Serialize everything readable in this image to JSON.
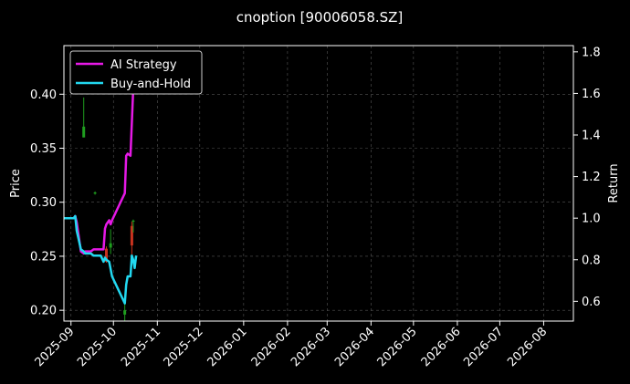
{
  "chart_data": {
    "type": "line",
    "title": "cnoption [90006058.SZ]",
    "ylabel_left": "Price",
    "ylabel_right": "Return",
    "x_ticks": [
      "2025-09",
      "2025-10",
      "2025-11",
      "2025-12",
      "2026-01",
      "2026-02",
      "2026-03",
      "2026-04",
      "2026-05",
      "2026-06",
      "2026-07",
      "2026-08"
    ],
    "xlim": [
      "2025-08-27",
      "2026-08-22"
    ],
    "ylim_left": [
      0.19,
      0.445
    ],
    "ylim_right": [
      0.505,
      1.83
    ],
    "y_ticks_left": [
      "0.20",
      "0.25",
      "0.30",
      "0.35",
      "0.40"
    ],
    "y_ticks_right": [
      "0.6",
      "0.8",
      "1.0",
      "1.2",
      "1.4",
      "1.6",
      "1.8"
    ],
    "legend_position": "top-left",
    "grid": true,
    "colors": {
      "ai_strategy": "#e619e6",
      "buy_and_hold": "#22d8f0",
      "candle_up": "#1f9e1f",
      "candle_down": "#c8321e",
      "grid": "#555555",
      "axis": "#ffffff"
    },
    "series": [
      {
        "name": "AI Strategy",
        "axis": "right",
        "points": [
          [
            "2025-08-27",
            1.0
          ],
          [
            "2025-09-03",
            1.0
          ],
          [
            "2025-09-04",
            1.01
          ],
          [
            "2025-09-05",
            0.98
          ],
          [
            "2025-09-08",
            0.84
          ],
          [
            "2025-09-10",
            0.83
          ],
          [
            "2025-09-11",
            0.84
          ],
          [
            "2025-09-15",
            0.84
          ],
          [
            "2025-09-17",
            0.85
          ],
          [
            "2025-09-22",
            0.85
          ],
          [
            "2025-09-24",
            0.85
          ],
          [
            "2025-09-25",
            0.95
          ],
          [
            "2025-09-26",
            0.97
          ],
          [
            "2025-09-28",
            0.99
          ],
          [
            "2025-09-29",
            0.97
          ],
          [
            "2025-09-30",
            0.99
          ],
          [
            "2025-10-09",
            1.12
          ],
          [
            "2025-10-10",
            1.3
          ],
          [
            "2025-10-11",
            1.31
          ],
          [
            "2025-10-13",
            1.3
          ],
          [
            "2025-10-15",
            1.62
          ]
        ]
      },
      {
        "name": "Buy-and-Hold",
        "axis": "right",
        "points": [
          [
            "2025-08-27",
            1.0
          ],
          [
            "2025-09-03",
            1.0
          ],
          [
            "2025-09-04",
            1.01
          ],
          [
            "2025-09-05",
            0.94
          ],
          [
            "2025-09-08",
            0.85
          ],
          [
            "2025-09-10",
            0.84
          ],
          [
            "2025-09-11",
            0.83
          ],
          [
            "2025-09-15",
            0.83
          ],
          [
            "2025-09-17",
            0.82
          ],
          [
            "2025-09-22",
            0.82
          ],
          [
            "2025-09-24",
            0.79
          ],
          [
            "2025-09-25",
            0.81
          ],
          [
            "2025-09-26",
            0.8
          ],
          [
            "2025-09-28",
            0.79
          ],
          [
            "2025-09-30",
            0.72
          ],
          [
            "2025-10-09",
            0.59
          ],
          [
            "2025-10-10",
            0.68
          ],
          [
            "2025-10-11",
            0.72
          ],
          [
            "2025-10-13",
            0.72
          ],
          [
            "2025-10-14",
            0.82
          ],
          [
            "2025-10-15",
            0.8
          ],
          [
            "2025-10-16",
            0.76
          ],
          [
            "2025-10-17",
            0.82
          ]
        ]
      }
    ],
    "candles": [
      {
        "date": "2025-09-10",
        "open": 0.37,
        "close": 0.36,
        "high": 0.397,
        "low": 0.36,
        "dir": "up"
      },
      {
        "date": "2025-09-18",
        "open": 0.309,
        "close": 0.308,
        "high": 0.31,
        "low": 0.307,
        "dir": "up"
      },
      {
        "date": "2025-09-26",
        "open": 0.257,
        "close": 0.245,
        "high": 0.259,
        "low": 0.244,
        "dir": "down"
      },
      {
        "date": "2025-09-29",
        "open": 0.262,
        "close": 0.258,
        "high": 0.275,
        "low": 0.252,
        "dir": "up"
      },
      {
        "date": "2025-10-09",
        "open": 0.2,
        "close": 0.196,
        "high": 0.214,
        "low": 0.19,
        "dir": "up"
      },
      {
        "date": "2025-10-14",
        "open": 0.278,
        "close": 0.26,
        "high": 0.282,
        "low": 0.245,
        "dir": "down"
      },
      {
        "date": "2025-10-15",
        "open": 0.283,
        "close": 0.282,
        "high": 0.284,
        "low": 0.272,
        "dir": "up"
      }
    ]
  }
}
